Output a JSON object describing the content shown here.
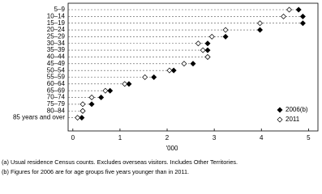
{
  "chart_data": {
    "type": "dot",
    "categories": [
      "5–9",
      "10–14",
      "15–19",
      "20–24",
      "25–29",
      "30–34",
      "35–39",
      "40–44",
      "45–49",
      "50–54",
      "55–59",
      "60–64",
      "65–69",
      "70–74",
      "75–79",
      "80–84",
      "85 years and over"
    ],
    "series": [
      {
        "name": "2006(b)",
        "color": "#000000",
        "values": [
          4.79,
          4.88,
          4.88,
          3.97,
          3.24,
          2.86,
          2.86,
          2.86,
          2.55,
          2.14,
          1.72,
          1.19,
          0.79,
          0.6,
          0.4,
          0.21,
          0.19
        ]
      },
      {
        "name": "2011",
        "color": "#ffffff",
        "values": [
          4.59,
          4.47,
          3.97,
          3.24,
          2.95,
          2.66,
          2.76,
          2.86,
          2.36,
          2.05,
          1.53,
          1.1,
          0.69,
          0.4,
          0.21,
          0.21,
          0.1
        ]
      }
    ],
    "xlim": [
      -0.1,
      5.2
    ],
    "xticks": [
      0,
      1,
      2,
      3,
      4,
      5
    ],
    "x_label": "'000",
    "legend": "lower-right",
    "footnotes": [
      "(a) Usual residence Census counts. Excludes overseas visitors. Includes Other Territories.",
      "(b) Figures for 2006 are for age groups five years younger than in 2011."
    ]
  }
}
